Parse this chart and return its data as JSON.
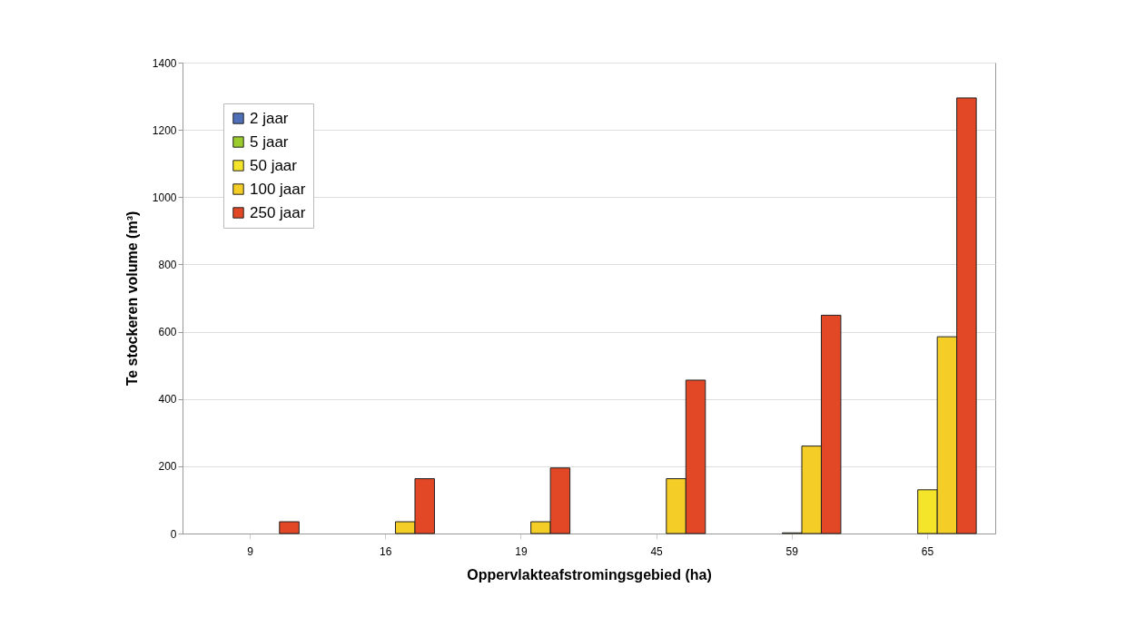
{
  "chart_data": {
    "type": "bar",
    "xlabel": "Oppervlakteafstromingsgebied (ha)",
    "ylabel": "Te stockeren volume (m³)",
    "categories": [
      "9",
      "16",
      "19",
      "45",
      "59",
      "65"
    ],
    "series": [
      {
        "name": "2 jaar",
        "color": "#4f6fb8",
        "values": [
          null,
          null,
          null,
          null,
          null,
          null
        ]
      },
      {
        "name": "5 jaar",
        "color": "#9bcb2c",
        "values": [
          null,
          null,
          null,
          null,
          null,
          null
        ]
      },
      {
        "name": "50 jaar",
        "color": "#f5e52a",
        "values": [
          null,
          null,
          null,
          null,
          2,
          130
        ]
      },
      {
        "name": "100 jaar",
        "color": "#f4cd26",
        "values": [
          null,
          35,
          35,
          163,
          260,
          585
        ]
      },
      {
        "name": "250 jaar",
        "color": "#e24726",
        "values": [
          35,
          163,
          195,
          456,
          649,
          1295
        ]
      }
    ],
    "ylim": [
      0,
      1400
    ],
    "yticks": [
      0,
      200,
      400,
      600,
      800,
      1000,
      1200,
      1400
    ],
    "grid": "y",
    "legend": "top left"
  }
}
